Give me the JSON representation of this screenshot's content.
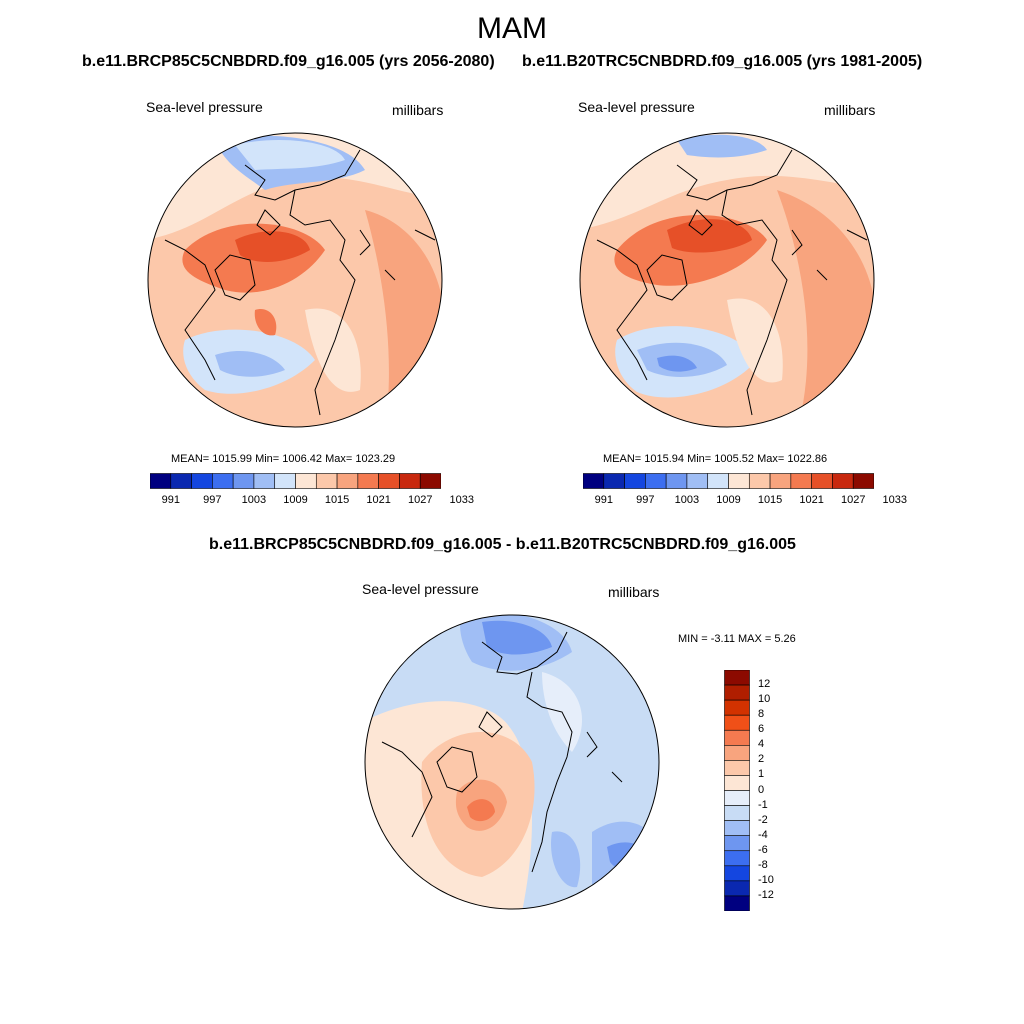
{
  "title": "MAM",
  "left_panel": {
    "case": "b.e11.BRCP85C5CNBDRD.f09_g16.005 (yrs 2056-2080)",
    "variable": "Sea-level pressure",
    "units": "millibars",
    "stats": "MEAN= 1015.99  Min= 1006.42  Max= 1023.29",
    "colorbar_labels": [
      "991",
      "997",
      "1003",
      "1009",
      "1015",
      "1021",
      "1027",
      "1033"
    ]
  },
  "right_panel": {
    "case": "b.e11.B20TRC5CNBDRD.f09_g16.005 (yrs 1981-2005)",
    "variable": "Sea-level pressure",
    "units": "millibars",
    "stats": "MEAN= 1015.94  Min= 1005.52  Max= 1022.86",
    "colorbar_labels": [
      "991",
      "997",
      "1003",
      "1009",
      "1015",
      "1021",
      "1027",
      "1033"
    ]
  },
  "diff_panel": {
    "case": "b.e11.BRCP85C5CNBDRD.f09_g16.005 - b.e11.B20TRC5CNBDRD.f09_g16.005",
    "variable": "Sea-level pressure",
    "units": "millibars",
    "minmax": "MIN =  -3.11 MAX =   5.26",
    "colorbar_labels": [
      "12",
      "10",
      "8",
      "6",
      "4",
      "2",
      "1",
      "0",
      "-1",
      "-2",
      "-4",
      "-6",
      "-8",
      "-10",
      "-12"
    ]
  },
  "colors": {
    "abs_scale": [
      "#000080",
      "#0a28b0",
      "#1446e0",
      "#3c6ef0",
      "#6e96f0",
      "#a0bef5",
      "#d2e4fa",
      "#fde6d5",
      "#fcc8aa",
      "#f8a47e",
      "#f47a50",
      "#e65028",
      "#c8280e",
      "#8c0a00"
    ],
    "diff_scale": [
      "#8c0a00",
      "#b01e00",
      "#d23200",
      "#f05018",
      "#f47a50",
      "#f8a47e",
      "#fcc8aa",
      "#fde6d5",
      "#e6eefa",
      "#c8dcf5",
      "#a0bef5",
      "#6e96f0",
      "#3c6ef0",
      "#1446e0",
      "#0a28b0",
      "#000080"
    ]
  }
}
